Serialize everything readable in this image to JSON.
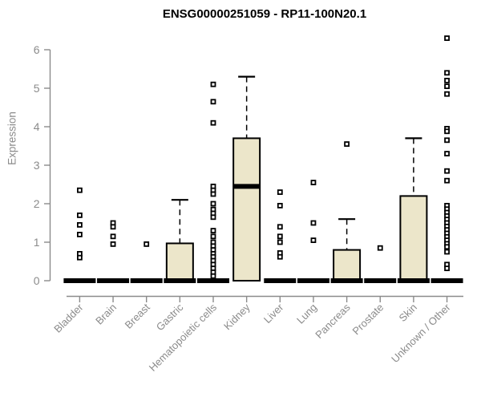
{
  "chart_data": {
    "type": "boxplot",
    "title": "ENSG00000251059 - RP11-100N20.1",
    "ylabel": "Expression",
    "xlabel": "",
    "ylim": [
      0,
      6.3
    ],
    "yticks": [
      0,
      1,
      2,
      3,
      4,
      5,
      6
    ],
    "grid": false,
    "legend": "none",
    "colors": {
      "box_fill": "#ECE6CA",
      "box_stroke": "#000000",
      "median": "#000000",
      "axis": "#8B8B8B",
      "title": "#000000",
      "background": "#ffffff"
    },
    "categories": [
      "Bladder",
      "Brain",
      "Breast",
      "Gastric",
      "Hematopoietic cells",
      "Kidney",
      "Liver",
      "Lung",
      "Pancreas",
      "Prostate",
      "Skin",
      "Unknown / Other"
    ],
    "boxes": [
      {
        "q1": 0,
        "median": 0,
        "q3": 0,
        "whisker_low": 0,
        "whisker_high": 0,
        "outliers": [
          2.35,
          1.7,
          1.45,
          1.2,
          0.7,
          0.6
        ]
      },
      {
        "q1": 0,
        "median": 0,
        "q3": 0,
        "whisker_low": 0,
        "whisker_high": 0,
        "outliers": [
          1.5,
          1.4,
          1.15,
          0.95
        ]
      },
      {
        "q1": 0,
        "median": 0,
        "q3": 0,
        "whisker_low": 0,
        "whisker_high": 0,
        "outliers": [
          0.95
        ]
      },
      {
        "q1": 0,
        "median": 0,
        "q3": 0.97,
        "whisker_low": 0,
        "whisker_high": 2.1,
        "outliers": []
      },
      {
        "q1": 0,
        "median": 0,
        "q3": 0,
        "whisker_low": 0,
        "whisker_high": 0,
        "outliers": [
          5.1,
          4.65,
          4.1,
          2.45,
          2.35,
          2.25,
          2.0,
          1.85,
          1.75,
          1.65,
          1.3,
          1.15,
          1.0,
          0.9,
          0.8,
          0.7,
          0.62,
          0.52,
          0.42,
          0.32,
          0.22,
          0.12
        ]
      },
      {
        "q1": 0,
        "median": 2.45,
        "q3": 3.7,
        "whisker_low": 0,
        "whisker_high": 5.3,
        "outliers": []
      },
      {
        "q1": 0,
        "median": 0,
        "q3": 0,
        "whisker_low": 0,
        "whisker_high": 0,
        "outliers": [
          2.3,
          1.95,
          1.4,
          1.15,
          1.0,
          0.72,
          0.62
        ]
      },
      {
        "q1": 0,
        "median": 0,
        "q3": 0,
        "whisker_low": 0,
        "whisker_high": 0,
        "outliers": [
          2.55,
          1.5,
          1.05
        ]
      },
      {
        "q1": 0,
        "median": 0,
        "q3": 0.8,
        "whisker_low": 0,
        "whisker_high": 1.6,
        "outliers": [
          3.55
        ]
      },
      {
        "q1": 0,
        "median": 0,
        "q3": 0,
        "whisker_low": 0,
        "whisker_high": 0,
        "outliers": [
          0.85
        ]
      },
      {
        "q1": 0,
        "median": 0,
        "q3": 2.2,
        "whisker_low": 0,
        "whisker_high": 3.7,
        "outliers": []
      },
      {
        "q1": 0,
        "median": 0,
        "q3": 0,
        "whisker_low": 0,
        "whisker_high": 0,
        "outliers": [
          6.3,
          5.4,
          5.2,
          5.05,
          4.85,
          3.95,
          3.88,
          3.65,
          3.3,
          2.85,
          2.6,
          1.95,
          1.86,
          1.77,
          1.68,
          1.59,
          1.5,
          1.41,
          1.32,
          1.23,
          1.14,
          1.05,
          0.96,
          0.88,
          0.75,
          0.42,
          0.32
        ]
      }
    ]
  }
}
